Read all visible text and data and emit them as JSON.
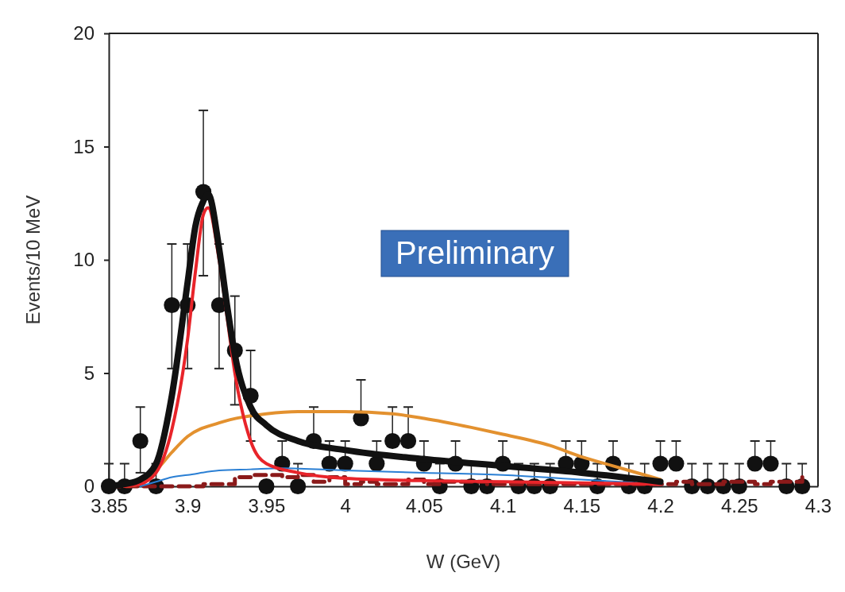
{
  "chart_data": {
    "type": "scatter",
    "xlabel": "W (GeV)",
    "ylabel": "Events/10 MeV",
    "xlim": [
      3.85,
      4.3
    ],
    "xticks": [
      3.85,
      3.9,
      3.95,
      4,
      4.05,
      4.1,
      4.15,
      4.2,
      4.25,
      4.3
    ],
    "ylim": [
      0,
      20
    ],
    "yticks": [
      0,
      5,
      10,
      15,
      20
    ],
    "grid": false,
    "annotations": [
      "Preliminary"
    ],
    "series": [
      {
        "type": "step",
        "color": "#8b1a1a",
        "line_style": "dashed",
        "x": [
          3.85,
          3.86,
          3.87,
          3.88,
          3.89,
          3.9,
          3.91,
          3.92,
          3.93,
          3.94,
          3.95,
          3.96,
          3.97,
          3.98,
          3.99,
          4,
          4.01,
          4.02,
          4.03,
          4.04,
          4.05,
          4.06,
          4.07,
          4.08,
          4.09,
          4.1,
          4.11,
          4.12,
          4.13,
          4.14,
          4.15,
          4.16,
          4.17,
          4.18,
          4.19,
          4.2,
          4.21,
          4.22,
          4.23,
          4.24,
          4.25,
          4.26,
          4.27,
          4.28,
          4.29
        ],
        "values": [
          0,
          0,
          0,
          0,
          0,
          0,
          0.1,
          0.1,
          0.4,
          0.5,
          0.5,
          0.4,
          0.5,
          0.2,
          0.4,
          0.1,
          0.2,
          0.1,
          0.1,
          0.3,
          0.1,
          0.2,
          0.2,
          0.2,
          0.1,
          0.1,
          0.1,
          0.1,
          0.1,
          0.1,
          0.1,
          0.1,
          0.1,
          0.1,
          0.1,
          0.1,
          0.2,
          0.1,
          0.1,
          0.2,
          0.2,
          0.1,
          0.2,
          0.2,
          0.4
        ]
      },
      {
        "type": "line",
        "color": "#e3912f",
        "x": [
          3.86,
          3.87,
          3.88,
          3.89,
          3.9,
          3.92,
          3.95,
          3.97,
          4,
          4.03,
          4.05,
          4.08,
          4.1,
          4.13,
          4.15,
          4.17,
          4.19,
          4.2
        ],
        "values": [
          0,
          0.1,
          0.7,
          1.5,
          2.2,
          2.8,
          3.2,
          3.3,
          3.3,
          3.2,
          3,
          2.6,
          2.3,
          1.8,
          1.3,
          0.9,
          0.5,
          0.3
        ]
      },
      {
        "type": "line",
        "color": "#2a7fd4",
        "x": [
          3.87,
          3.88,
          3.89,
          3.9,
          3.92,
          3.94,
          3.96,
          4,
          4.05,
          4.1,
          4.15,
          4.2
        ],
        "values": [
          0,
          0.2,
          0.4,
          0.5,
          0.7,
          0.75,
          0.8,
          0.7,
          0.6,
          0.5,
          0.3,
          0.1
        ]
      },
      {
        "type": "line",
        "color": "#e8242a",
        "x": [
          3.86,
          3.87,
          3.88,
          3.89,
          3.9,
          3.905,
          3.91,
          3.913,
          3.92,
          3.925,
          3.93,
          3.94,
          3.95,
          3.97,
          4,
          4.05,
          4.1,
          4.15,
          4.2
        ],
        "values": [
          0,
          0.1,
          0.6,
          2.5,
          6.5,
          9.5,
          12,
          12.3,
          10,
          7.5,
          5,
          2,
          1,
          0.6,
          0.35,
          0.25,
          0.2,
          0.15,
          0.1
        ]
      },
      {
        "type": "line",
        "color": "#111111",
        "x": [
          3.85,
          3.86,
          3.87,
          3.88,
          3.89,
          3.9,
          3.905,
          3.91,
          3.913,
          3.92,
          3.925,
          3.93,
          3.94,
          3.95,
          3.97,
          4,
          4.05,
          4.1,
          4.15,
          4.2
        ],
        "values": [
          0,
          0.1,
          0.3,
          1,
          4,
          9,
          11.5,
          12.6,
          12.9,
          10.5,
          8,
          5.8,
          3.5,
          2.7,
          2,
          1.6,
          1.2,
          0.9,
          0.6,
          0.2
        ]
      },
      {
        "color": "#111111",
        "x": [
          3.85,
          3.86,
          3.87,
          3.88,
          3.89,
          3.9,
          3.91,
          3.92,
          3.93,
          3.94,
          3.95,
          3.96,
          3.97,
          3.98,
          3.99,
          4,
          4.01,
          4.02,
          4.03,
          4.04,
          4.05,
          4.06,
          4.07,
          4.08,
          4.09,
          4.1,
          4.11,
          4.12,
          4.13,
          4.14,
          4.15,
          4.16,
          4.17,
          4.18,
          4.19,
          4.2,
          4.21,
          4.22,
          4.23,
          4.24,
          4.25,
          4.26,
          4.27,
          4.28,
          4.29
        ],
        "values": [
          0,
          0,
          2,
          0,
          8,
          8,
          13,
          8,
          6,
          4,
          0,
          1,
          0,
          2,
          1,
          1,
          3,
          1,
          2,
          2,
          1,
          0,
          1,
          0,
          0,
          1,
          0,
          0,
          0,
          1,
          1,
          0,
          1,
          0,
          0,
          1,
          1,
          0,
          0,
          0,
          0,
          1,
          1,
          0,
          0
        ],
        "errors": [
          [
            0,
            1
          ],
          [
            0,
            1
          ],
          [
            0.6,
            3.5
          ],
          [
            0,
            1
          ],
          [
            5.2,
            10.7
          ],
          [
            5.2,
            10.7
          ],
          [
            9.3,
            16.6
          ],
          [
            5.2,
            10.7
          ],
          [
            3.6,
            8.4
          ],
          [
            2,
            6
          ],
          null,
          [
            1,
            2
          ],
          [
            0,
            1
          ],
          [
            2,
            3.5
          ],
          [
            1,
            2
          ],
          [
            1,
            2
          ],
          [
            3,
            4.7
          ],
          [
            1,
            2
          ],
          [
            2,
            3.5
          ],
          [
            2,
            3.5
          ],
          [
            1,
            2
          ],
          [
            0,
            1
          ],
          [
            1,
            2
          ],
          [
            0,
            1
          ],
          [
            0,
            1
          ],
          [
            1,
            2
          ],
          [
            0,
            1
          ],
          [
            0,
            1
          ],
          [
            0,
            1
          ],
          [
            1,
            2
          ],
          [
            1,
            2
          ],
          [
            0,
            1
          ],
          [
            1,
            2
          ],
          [
            0,
            1
          ],
          [
            0,
            1
          ],
          [
            1,
            2
          ],
          [
            1,
            2
          ],
          [
            0,
            1
          ],
          [
            0,
            1
          ],
          [
            0,
            1
          ],
          [
            0,
            1
          ],
          [
            1,
            2
          ],
          [
            1,
            2
          ],
          [
            0,
            1
          ],
          [
            0,
            1
          ]
        ]
      }
    ]
  }
}
